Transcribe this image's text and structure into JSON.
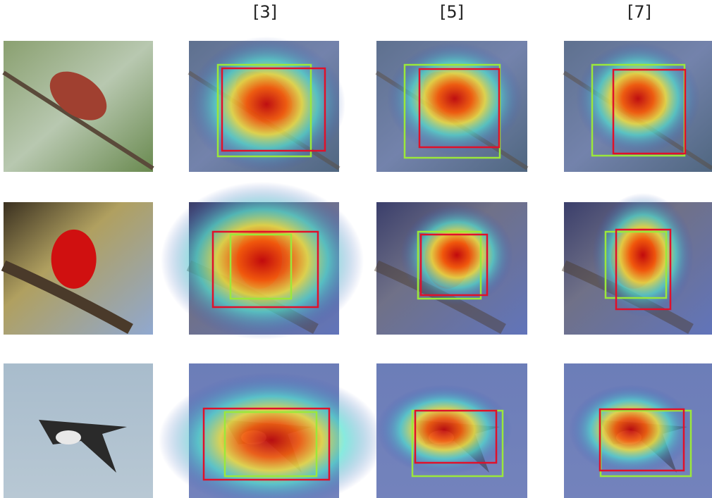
{
  "columns": [
    "[3]",
    "[5]",
    "[7]"
  ]
}
